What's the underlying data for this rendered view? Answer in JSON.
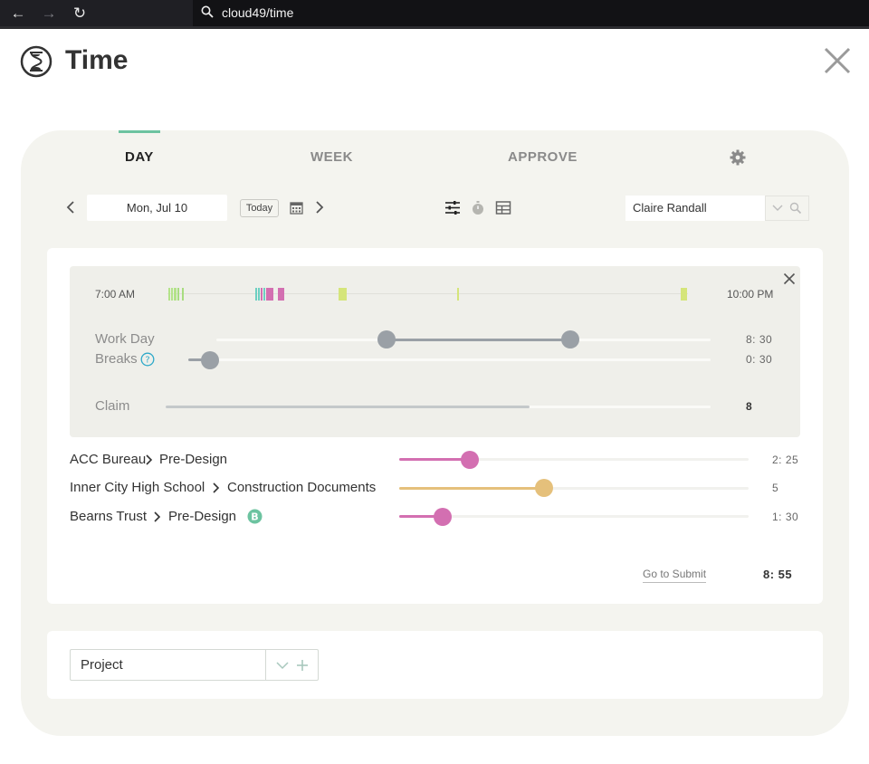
{
  "browser": {
    "url": "cloud49/time"
  },
  "app": {
    "title": "Time"
  },
  "tabs": [
    {
      "label": "DAY",
      "active": true
    },
    {
      "label": "WEEK",
      "active": false
    },
    {
      "label": "APPROVE",
      "active": false
    }
  ],
  "toolbar": {
    "date": "Mon, Jul 10",
    "today_label": "Today",
    "user": "Claire Randall"
  },
  "timeline": {
    "start_label": "7:00 AM",
    "end_label": "10:00 PM"
  },
  "summary": {
    "work_day": {
      "label": "Work Day",
      "value": "8: 30"
    },
    "breaks": {
      "label": "Breaks",
      "value": "0: 30"
    },
    "claim": {
      "label": "Claim",
      "value": "8"
    }
  },
  "projects": [
    {
      "client": "ACC Bureau",
      "phase": "Pre-Design",
      "value": "2: 25",
      "color": "#d36fb1"
    },
    {
      "client": "Inner City High School",
      "phase": "Construction Documents",
      "value": "5",
      "color": "#e5c07b"
    },
    {
      "client": "Bearns Trust",
      "phase": "Pre-Design",
      "value": "1: 30",
      "color": "#d36fb1",
      "badge": "B"
    }
  ],
  "footer": {
    "submit_label": "Go to Submit",
    "total": "8: 55"
  },
  "add_project": {
    "value": "Project"
  },
  "colors": {
    "accent": "#6cc3a0",
    "slider_gray": "#9aa0a6",
    "pink": "#d36fb1",
    "gold": "#e5c07b",
    "lime": "#d5e57a"
  }
}
